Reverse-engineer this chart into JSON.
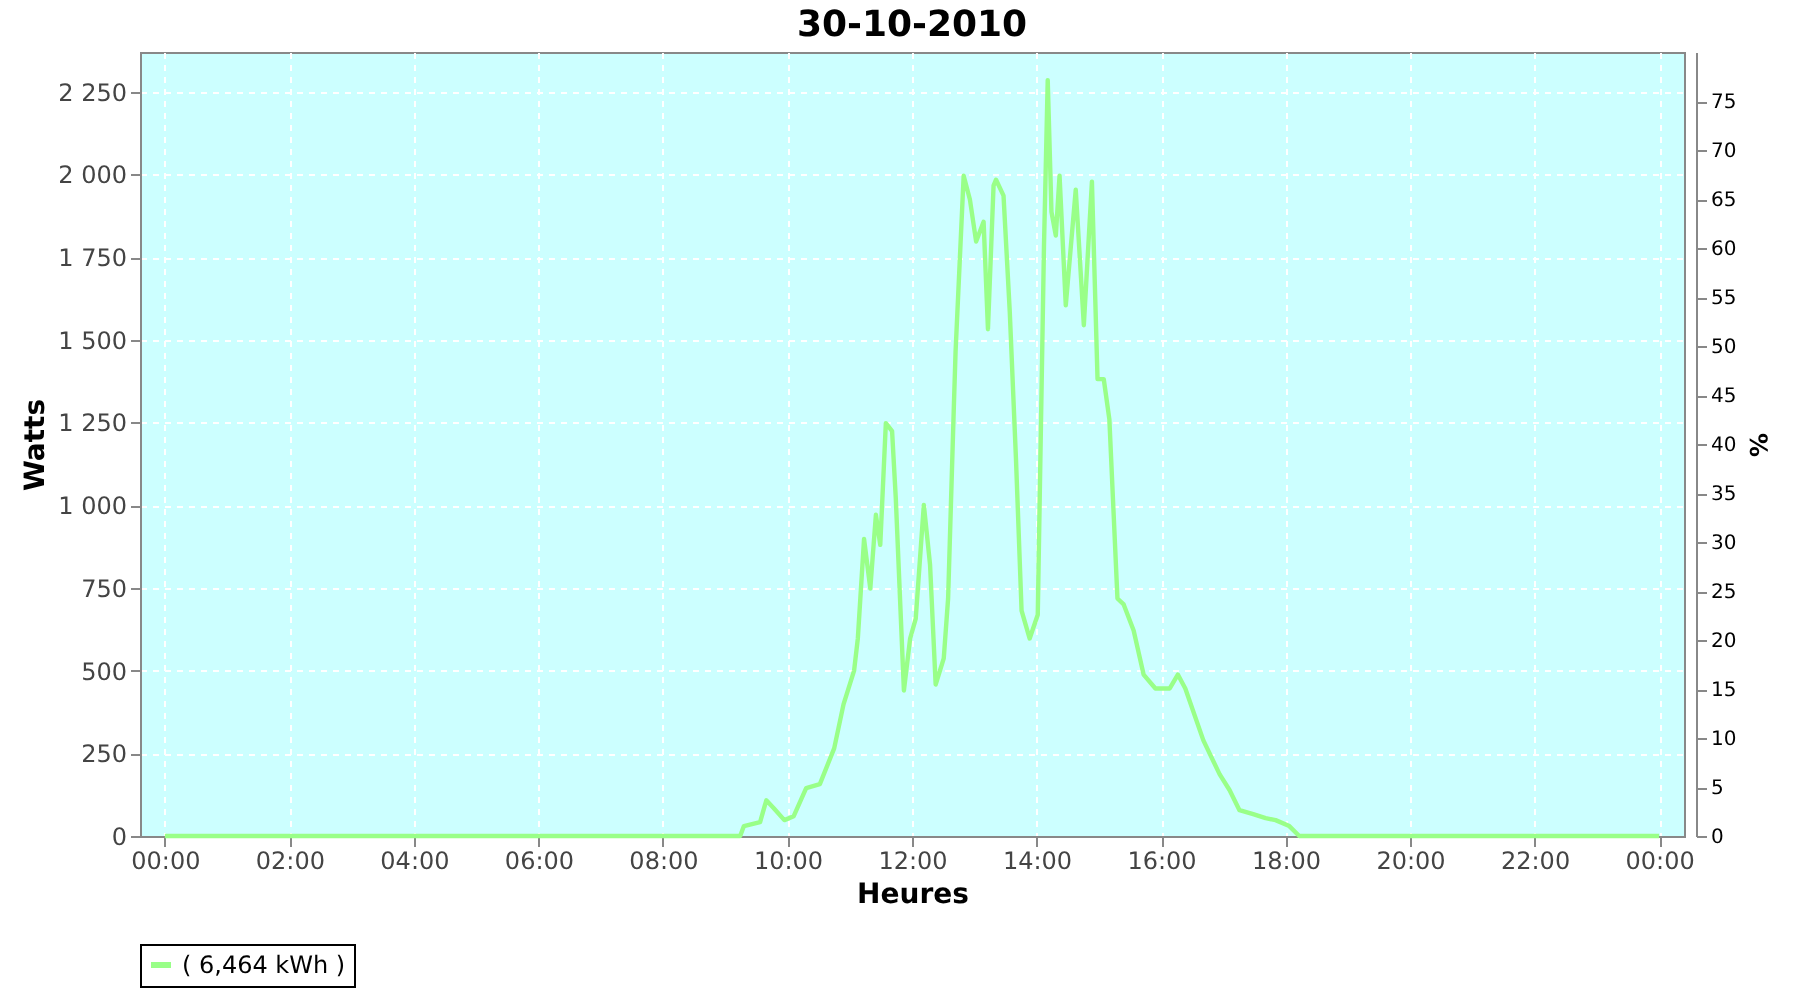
{
  "chart_data": {
    "type": "line",
    "title": "30-10-2010",
    "xlabel": "Heures",
    "ylabel": "Watts",
    "y2label": "%",
    "xlim": [
      -0.4,
      24.4
    ],
    "xticks": [
      {
        "value": 0,
        "label": "00:00"
      },
      {
        "value": 2,
        "label": "02:00"
      },
      {
        "value": 4,
        "label": "04:00"
      },
      {
        "value": 6,
        "label": "06:00"
      },
      {
        "value": 8,
        "label": "08:00"
      },
      {
        "value": 10,
        "label": "10:00"
      },
      {
        "value": 12,
        "label": "12:00"
      },
      {
        "value": 14,
        "label": "14:00"
      },
      {
        "value": 16,
        "label": "16:00"
      },
      {
        "value": 18,
        "label": "18:00"
      },
      {
        "value": 20,
        "label": "20:00"
      },
      {
        "value": 22,
        "label": "22:00"
      },
      {
        "value": 24,
        "label": "00:00"
      }
    ],
    "ylim": [
      0,
      2370
    ],
    "yticks": [
      0,
      250,
      500,
      750,
      {
        "value": 1000,
        "label": "1 000"
      },
      {
        "value": 1250,
        "label": "1 250"
      },
      {
        "value": 1500,
        "label": "1 500"
      },
      {
        "value": 1750,
        "label": "1 750"
      },
      {
        "value": 2000,
        "label": "2 000"
      },
      {
        "value": 2250,
        "label": "2 250"
      }
    ],
    "y2lim": [
      0,
      80
    ],
    "y2ticks": [
      0,
      5,
      10,
      15,
      20,
      25,
      30,
      35,
      40,
      45,
      50,
      55,
      60,
      65,
      70,
      75
    ],
    "grid": true,
    "legend": "bottom",
    "marker": "none",
    "line_style": "solid",
    "x": [
      0,
      9.24,
      9.3,
      9.56,
      9.66,
      9.78,
      9.95,
      10.1,
      10.3,
      10.52,
      10.75,
      10.9,
      11.07,
      11.13,
      11.23,
      11.33,
      11.42,
      11.49,
      11.58,
      11.68,
      11.74,
      11.87,
      11.97,
      12.06,
      12.19,
      12.29,
      12.38,
      12.51,
      12.58,
      12.67,
      12.7,
      12.83,
      12.93,
      13.03,
      13.15,
      13.22,
      13.31,
      13.35,
      13.47,
      13.57,
      13.67,
      13.76,
      13.89,
      14.02,
      14.12,
      14.18,
      14.24,
      14.31,
      14.37,
      14.47,
      14.63,
      14.76,
      14.89,
      14.98,
      15.08,
      15.17,
      15.3,
      15.4,
      15.56,
      15.72,
      15.91,
      16.14,
      16.27,
      16.39,
      16.68,
      16.94,
      17.1,
      17.26,
      17.48,
      17.68,
      17.84,
      18.06,
      18.22,
      24
    ],
    "series": [
      {
        "name": "( 6,464 kWh )",
        "color": "#99ff88",
        "values": [
          0,
          0,
          30,
          42,
          108,
          84,
          48,
          60,
          145,
          157,
          265,
          398,
          500,
          597,
          898,
          748,
          971,
          880,
          1248,
          1224,
          1019,
          440,
          597,
          657,
          1001,
          820,
          458,
          537,
          718,
          1284,
          1465,
          1996,
          1924,
          1797,
          1857,
          1532,
          1966,
          1984,
          1936,
          1586,
          1140,
          681,
          597,
          669,
          1785,
          2285,
          1887,
          1815,
          1996,
          1604,
          1954,
          1544,
          1978,
          1381,
          1381,
          1260,
          718,
          700,
          621,
          488,
          446,
          446,
          488,
          446,
          289,
          187,
          139,
          78,
          66,
          54,
          48,
          30,
          0,
          0
        ]
      }
    ]
  }
}
